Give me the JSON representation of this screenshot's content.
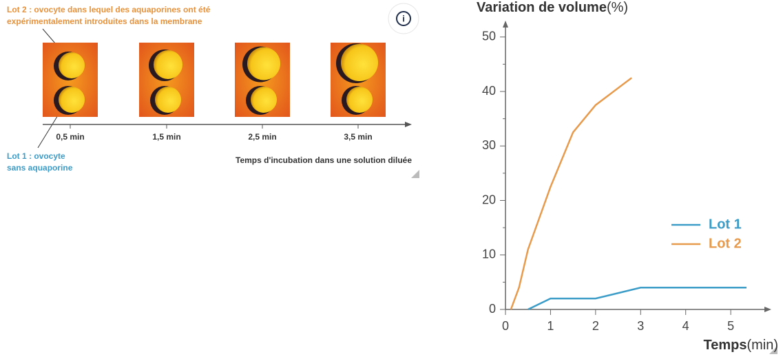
{
  "diagram": {
    "lot2_label": [
      "Lot 2 : ovocyte dans lequel des aquaporines ont été",
      "expérimentalement introduites dans la membrane"
    ],
    "lot1_label": [
      "Lot 1 : ovocyte",
      "sans aquaporine"
    ],
    "times": [
      "0,5 min",
      "1,5 min",
      "2,5 min",
      "3,5 min"
    ],
    "axis_label": "Temps d'incubation dans une solution diluée"
  },
  "chart_data": {
    "type": "line",
    "ylabel": "Variation de volume",
    "ylabel_unit": "(%)",
    "xlabel": "Temps",
    "xlabel_unit": "(min)",
    "xlim": [
      0,
      5.9
    ],
    "ylim": [
      0,
      53
    ],
    "xticks": [
      0,
      1,
      2,
      3,
      4,
      5
    ],
    "yticks": [
      0,
      10,
      20,
      30,
      40,
      50
    ],
    "yminorticks": [
      5,
      15,
      25,
      35,
      45
    ],
    "legend": "right",
    "series": [
      {
        "name": "Lot 1",
        "color": "#3b9cc8",
        "x": [
          0.5,
          1,
          2,
          3,
          5.35
        ],
        "values": [
          0,
          2,
          2,
          4,
          4
        ]
      },
      {
        "name": "Lot 2",
        "color": "#e89a4c",
        "x": [
          0.12,
          0.3,
          0.5,
          1,
          1.5,
          2,
          2.4,
          2.8
        ],
        "values": [
          0,
          4,
          11,
          22.5,
          32.5,
          37.5,
          40,
          42.5
        ]
      }
    ]
  }
}
